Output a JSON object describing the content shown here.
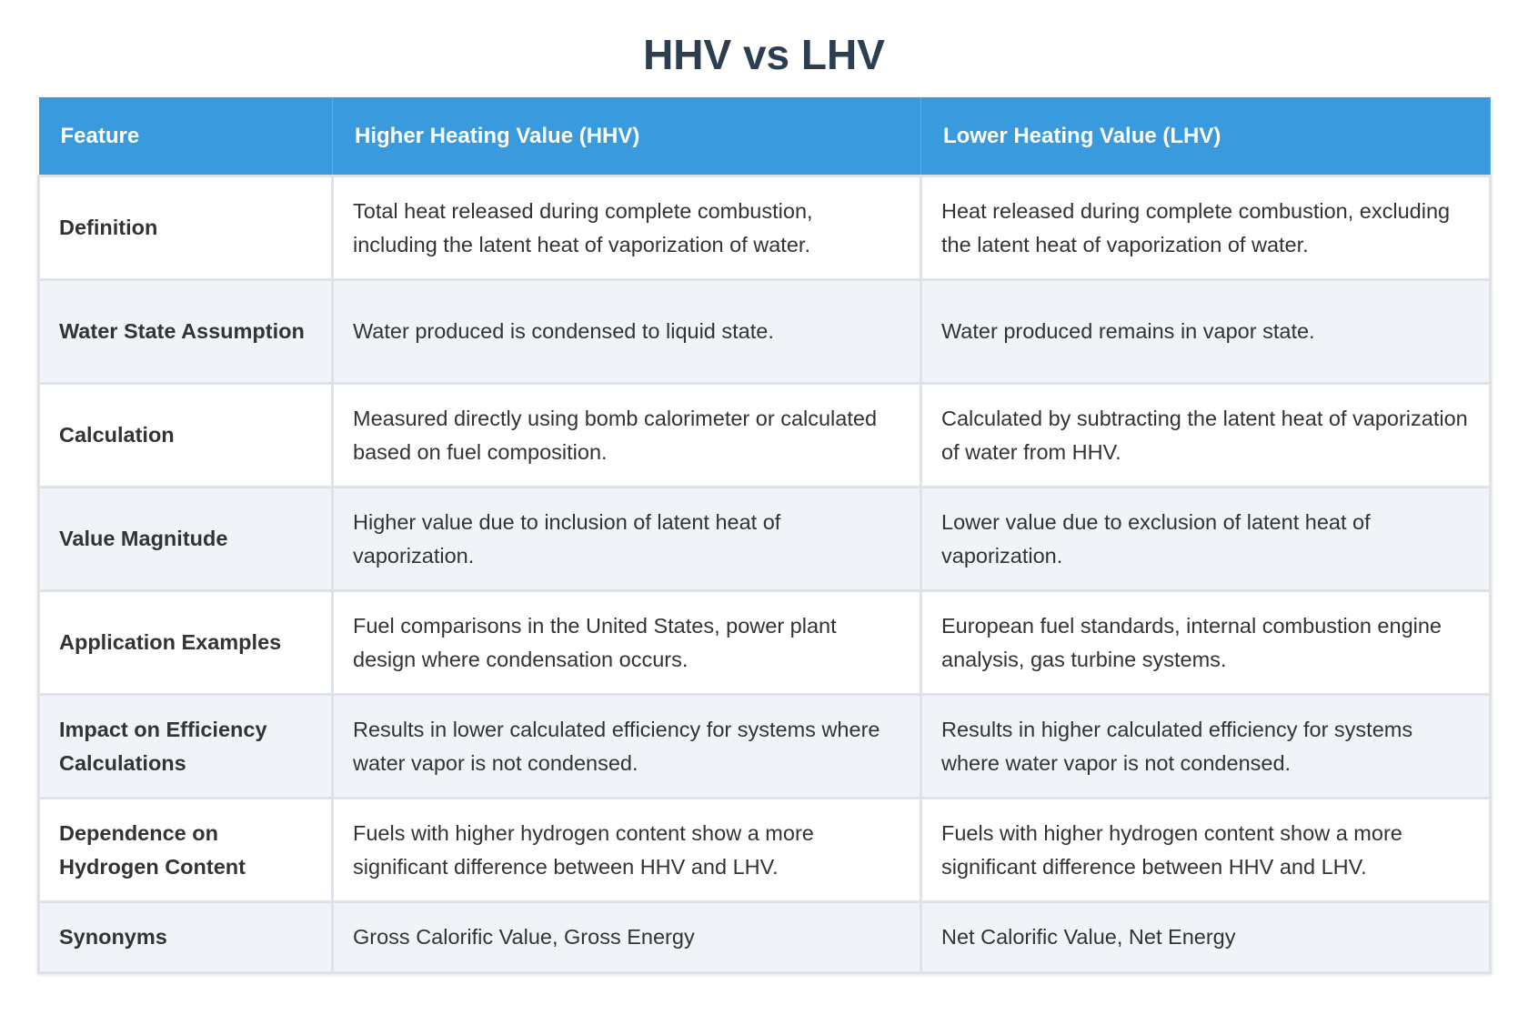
{
  "title": "HHV vs LHV",
  "table": {
    "headers": [
      "Feature",
      "Higher Heating Value (HHV)",
      "Lower Heating Value (LHV)"
    ],
    "rows": [
      [
        "Definition",
        "Total heat released during complete combustion, including the latent heat of vaporization of water.",
        "Heat released during complete combustion, excluding the latent heat of vaporization of water."
      ],
      [
        "Water State Assumption",
        "Water produced is condensed to liquid state.",
        "Water produced remains in vapor state."
      ],
      [
        "Calculation",
        "Measured directly using bomb calorimeter or calculated based on fuel composition.",
        "Calculated by subtracting the latent heat of vaporization of water from HHV."
      ],
      [
        "Value Magnitude",
        "Higher value due to inclusion of latent heat of vaporization.",
        "Lower value due to exclusion of latent heat of vaporization."
      ],
      [
        "Application Examples",
        "Fuel comparisons in the United States, power plant design where condensation occurs.",
        "European fuel standards, internal combustion engine analysis, gas turbine systems."
      ],
      [
        "Impact on Efficiency Calculations",
        "Results in lower calculated efficiency for systems where water vapor is not condensed.",
        "Results in higher calculated efficiency for systems where water vapor is not condensed."
      ],
      [
        "Dependence on Hydrogen Content",
        "Fuels with higher hydrogen content show a more significant difference between HHV and LHV.",
        "Fuels with higher hydrogen content show a more significant difference between HHV and LHV."
      ],
      [
        "Synonyms",
        "Gross Calorific Value, Gross Energy",
        "Net Calorific Value, Net Energy"
      ]
    ]
  }
}
